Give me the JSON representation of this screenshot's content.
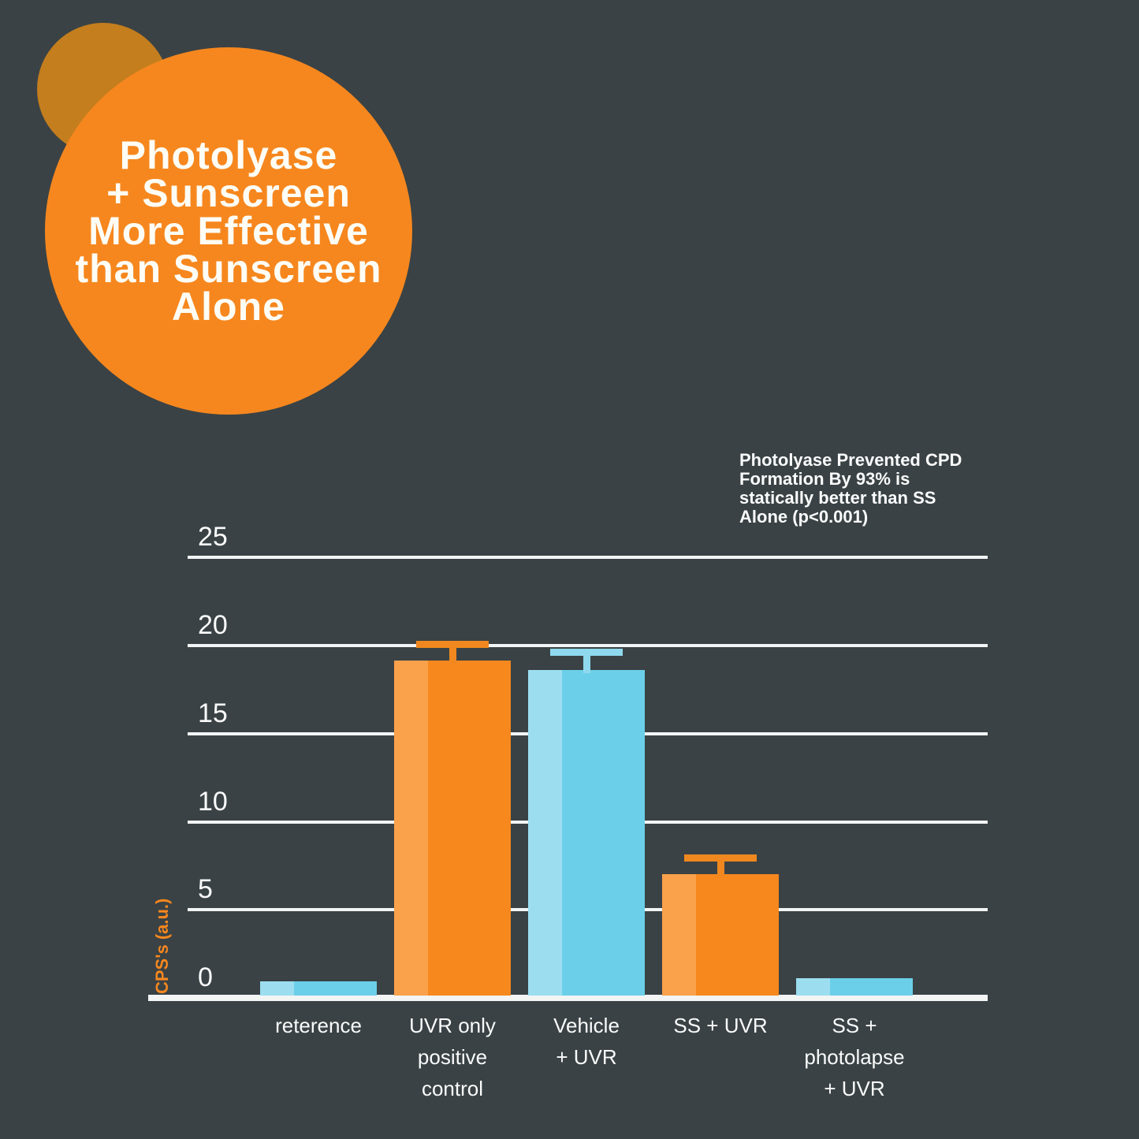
{
  "badge": {
    "title": "Photolyase\n+ Sunscreen\nMore Effective\nthan Sunscreen\nAlone"
  },
  "annotation": {
    "text": "Photolyase Prevented CPD\nFormation By 93% is\nstatically better than SS\nAlone (p<0.001)"
  },
  "chart_data": {
    "type": "bar",
    "title": "Photolyase + Sunscreen More Effective than Sunscreen Alone",
    "xlabel": "",
    "ylabel": "CPS's (a.u.)",
    "ylim": [
      0,
      25
    ],
    "yticks": [
      0,
      5,
      10,
      15,
      20,
      25
    ],
    "grid": true,
    "legend": "none",
    "categories": [
      "reterence",
      "UVR only\npositive\ncontrol",
      "Vehicle\n+ UVR",
      "SS + UVR",
      "SS +\nphotolapse\n+ UVR"
    ],
    "values": [
      0.8,
      19,
      18.5,
      6.9,
      1.0
    ],
    "errors": [
      null,
      0.9,
      1.0,
      0.9,
      null
    ],
    "bar_colors": [
      "blue",
      "orange",
      "blue",
      "orange",
      "blue"
    ],
    "annotations": [
      "Photolyase Prevented CPD Formation By 93% is statically better than SS Alone (p<0.001)"
    ]
  },
  "colors": {
    "background": "#3A4245",
    "badge_circle": "#F6871E",
    "badge_small_circle": "#C47E1E",
    "grid": "#F3F5F5",
    "tick_text": "#FAFBFB",
    "ylabel_text": "#F6871E",
    "orange": {
      "main": "#F6881E",
      "light": "#FAA14B",
      "error": "#F0881F"
    },
    "blue": {
      "main": "#6CCFE9",
      "light": "#9CDEF0",
      "error": "#8FD9EE"
    }
  }
}
